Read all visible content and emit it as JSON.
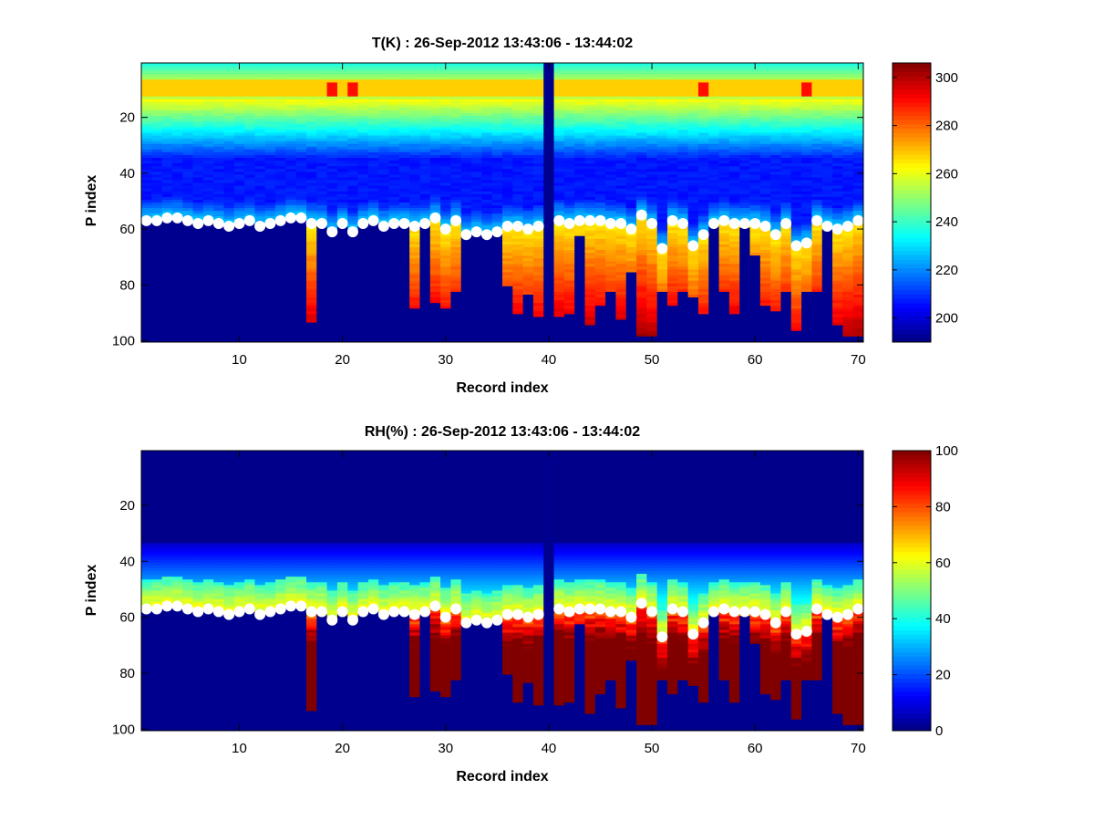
{
  "figure": {
    "background": "#ffffff",
    "colormap": "jet"
  },
  "chart_data": [
    {
      "type": "heatmap",
      "title": "T(K) : 26-Sep-2012 13:43:06 - 13:44:02",
      "xlabel": "Record index",
      "ylabel": "P index",
      "xlim": [
        0.5,
        70.5
      ],
      "ylim": [
        0.5,
        100.5
      ],
      "y_reversed": true,
      "xticks": [
        10,
        20,
        30,
        40,
        50,
        60,
        70
      ],
      "yticks": [
        20,
        40,
        60,
        80,
        100
      ],
      "colorbar": {
        "clim": [
          190,
          306
        ],
        "ticks": [
          200,
          220,
          240,
          260,
          280,
          300
        ],
        "position": "right"
      },
      "variable": "temperature",
      "fill_color": "#00008f",
      "marker_color": "#ffffff",
      "surface_p_index": [
        57,
        57,
        56,
        56,
        57,
        58,
        57,
        58,
        59,
        58,
        57,
        59,
        58,
        57,
        56,
        56,
        58,
        58,
        61,
        58,
        61,
        58,
        57,
        59,
        58,
        58,
        59,
        58,
        56,
        60,
        57,
        62,
        61,
        62,
        61,
        59,
        59,
        60,
        59,
        100,
        57,
        58,
        57,
        57,
        57,
        58,
        58,
        60,
        55,
        58,
        67,
        57,
        58,
        66,
        62,
        58,
        57,
        58,
        58,
        58,
        59,
        62,
        58,
        66,
        65,
        57,
        59,
        60,
        59,
        57
      ],
      "data_bottom_p_index": [
        57,
        57,
        56,
        56,
        57,
        58,
        57,
        58,
        59,
        58,
        57,
        59,
        58,
        57,
        56,
        56,
        93,
        58,
        61,
        58,
        61,
        58,
        57,
        59,
        58,
        58,
        88,
        58,
        86,
        88,
        82,
        62,
        61,
        62,
        61,
        80,
        90,
        83,
        91,
        100,
        91,
        90,
        62,
        94,
        87,
        82,
        92,
        75,
        98,
        98,
        82,
        87,
        82,
        84,
        90,
        58,
        82,
        90,
        59,
        69,
        87,
        89,
        82,
        96,
        82,
        82,
        59,
        94,
        98,
        98
      ],
      "notes": "Record 40 is an all-fill (missing) column. Below the white surface markers, columns continue with warm (270-300 K) values down to data_bottom_p_index; deeper cells are fill."
    },
    {
      "type": "heatmap",
      "title": "RH(%) : 26-Sep-2012 13:43:06 - 13:44:02",
      "xlabel": "Record index",
      "ylabel": "P index",
      "xlim": [
        0.5,
        70.5
      ],
      "ylim": [
        0.5,
        100.5
      ],
      "y_reversed": true,
      "xticks": [
        10,
        20,
        30,
        40,
        50,
        60,
        70
      ],
      "yticks": [
        20,
        40,
        60,
        80,
        100
      ],
      "colorbar": {
        "clim": [
          0,
          100
        ],
        "ticks": [
          0,
          20,
          40,
          60,
          80,
          100
        ],
        "position": "right"
      },
      "variable": "relative_humidity",
      "fill_color": "#00008f",
      "marker_color": "#ffffff",
      "surface_p_index": [
        57,
        57,
        56,
        56,
        57,
        58,
        57,
        58,
        59,
        58,
        57,
        59,
        58,
        57,
        56,
        56,
        58,
        58,
        61,
        58,
        61,
        58,
        57,
        59,
        58,
        58,
        59,
        58,
        56,
        60,
        57,
        62,
        61,
        62,
        61,
        59,
        59,
        60,
        59,
        100,
        57,
        58,
        57,
        57,
        57,
        58,
        58,
        60,
        55,
        58,
        67,
        57,
        58,
        66,
        62,
        58,
        57,
        58,
        58,
        58,
        59,
        62,
        58,
        66,
        65,
        57,
        59,
        60,
        59,
        57
      ],
      "data_bottom_p_index": [
        57,
        57,
        56,
        56,
        57,
        58,
        57,
        58,
        59,
        58,
        57,
        59,
        58,
        57,
        56,
        56,
        93,
        58,
        61,
        58,
        61,
        58,
        57,
        59,
        58,
        58,
        88,
        58,
        86,
        88,
        82,
        62,
        61,
        62,
        61,
        80,
        90,
        83,
        91,
        100,
        91,
        90,
        62,
        94,
        87,
        82,
        92,
        75,
        98,
        98,
        82,
        87,
        82,
        84,
        90,
        58,
        82,
        90,
        59,
        69,
        87,
        89,
        82,
        96,
        82,
        82,
        59,
        94,
        98,
        98
      ],
      "notes": "Moist layer near P index 45-60 (40-60%), saturated (~90-100%) near-surface columns below the white markers; upper levels near 0%."
    }
  ]
}
